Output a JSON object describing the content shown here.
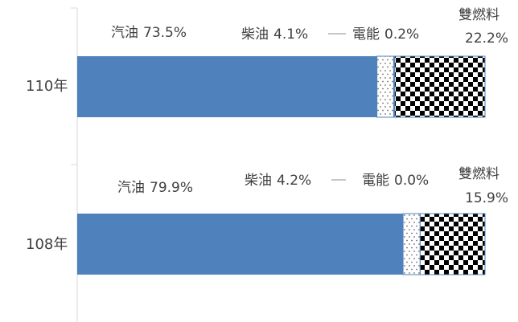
{
  "chart_data": {
    "type": "bar",
    "orientation": "horizontal",
    "stacked": "100%",
    "categories": [
      "110年",
      "108年"
    ],
    "series": [
      {
        "name": "汽油",
        "values": [
          73.5,
          79.9
        ],
        "value_labels": [
          "73.5%",
          "79.9%"
        ],
        "color": "#4F81BD",
        "pattern": "solid"
      },
      {
        "name": "柴油",
        "values": [
          4.1,
          4.2
        ],
        "value_labels": [
          "4.1%",
          "4.2%"
        ],
        "color": "#4F81BD",
        "pattern": "dots"
      },
      {
        "name": "電能",
        "values": [
          0.2,
          0.0
        ],
        "value_labels": [
          "0.2%",
          "0.0%"
        ],
        "color": "#4F81BD",
        "pattern": "thin"
      },
      {
        "name": "雙燃料",
        "values": [
          22.2,
          15.9
        ],
        "value_labels": [
          "22.2%",
          "15.9%"
        ],
        "color": "#000000",
        "pattern": "checker"
      }
    ],
    "xlim": [
      0,
      100
    ],
    "grid": false,
    "legend": "none"
  }
}
